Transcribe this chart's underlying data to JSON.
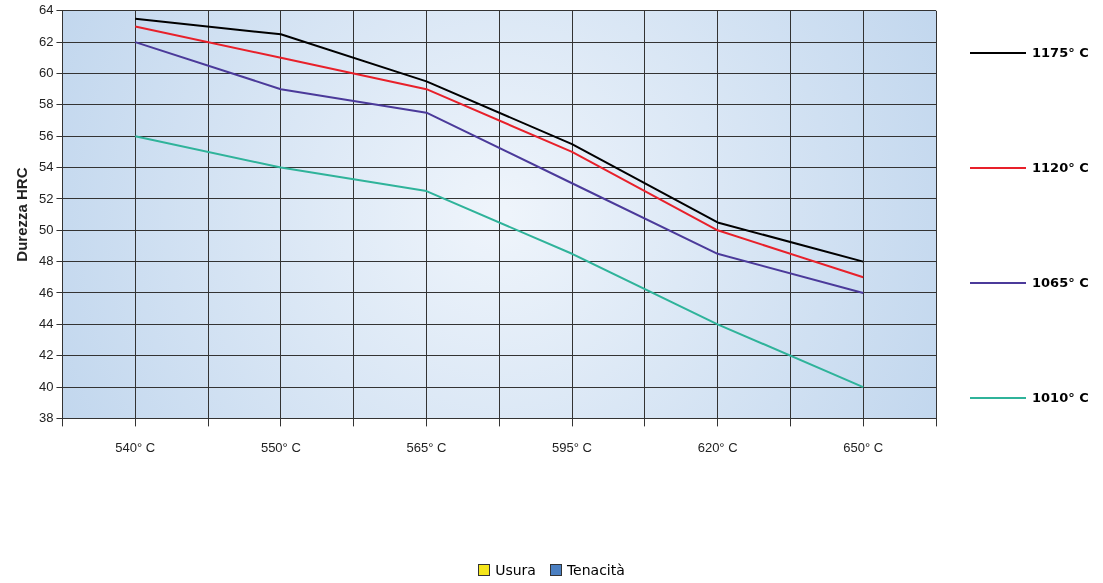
{
  "chart_data": {
    "type": "line",
    "ylabel": "Durezza HRC",
    "categories": [
      "540° C",
      "550° C",
      "565° C",
      "595° C",
      "620° C",
      "650° C"
    ],
    "series": [
      {
        "name": "1175° C",
        "color": "#000000",
        "values": [
          63.5,
          62.5,
          59.5,
          55.5,
          50.5,
          48
        ]
      },
      {
        "name": "1120° C",
        "color": "#e8202a",
        "values": [
          63,
          61,
          59,
          55,
          50,
          47
        ]
      },
      {
        "name": "1065° C",
        "color": "#4b3a9a",
        "values": [
          62,
          59,
          57.5,
          53,
          48.5,
          46
        ]
      },
      {
        "name": "1010° C",
        "color": "#2fb39a",
        "values": [
          56,
          54,
          52.5,
          48.5,
          44,
          40
        ]
      }
    ],
    "ylim": [
      38,
      64
    ],
    "yticks": [
      38,
      40,
      42,
      44,
      46,
      48,
      50,
      52,
      54,
      56,
      58,
      60,
      62,
      64
    ],
    "grid": true,
    "legend": "right",
    "marker": "none",
    "line_style": "solid",
    "annotations": [
      "Usura",
      "Tenacità"
    ]
  }
}
